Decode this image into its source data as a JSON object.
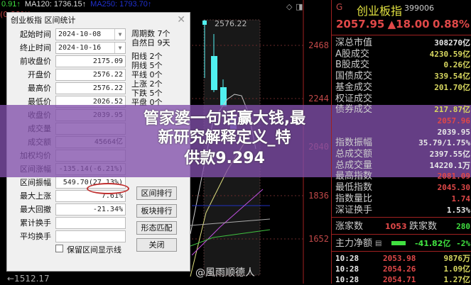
{
  "chart": {
    "ma_prev": "0.91↑",
    "ma120": "MA120: 1736.15↑",
    "ma250": "MA250: 1793.70↑",
    "pct": "(0.88%)",
    "high_marker": "2576.22",
    "low_marker": "←1512.17",
    "axis": [
      "2468",
      "2244",
      "2040",
      "1836",
      "1652"
    ]
  },
  "dialog": {
    "title": "创业板指 区间统计",
    "close": "✕",
    "rows": [
      {
        "label": "起始时间",
        "value": "2024-10-08"
      },
      {
        "label": "终止时间",
        "value": "2024-10-16"
      },
      {
        "label": "前收盘价",
        "value": "2175.09"
      },
      {
        "label": "开盘价",
        "value": "2576.22"
      },
      {
        "label": "最高价",
        "value": "2576.22"
      },
      {
        "label": "最低价",
        "value": "2026.52"
      },
      {
        "label": "收盘价",
        "value": "2039.95"
      },
      {
        "label": "成交量",
        "value": ""
      },
      {
        "label": "成交额",
        "value": "45664亿"
      },
      {
        "label": "加权均价",
        "value": ""
      },
      {
        "label": "区间涨幅",
        "value": "-135.14(-6.21%)"
      },
      {
        "label": "区间振幅",
        "value": "549.70(27.13%)"
      },
      {
        "label": "最大上涨",
        "value": "7.61%"
      },
      {
        "label": "最大回撤",
        "value": "-21.34%"
      },
      {
        "label": "累计换手",
        "value": ""
      },
      {
        "label": "平均换手",
        "value": ""
      }
    ],
    "stats": [
      "周期数 7个",
      "自然日 9天",
      "阳线 2个",
      "阴线 5个",
      "平线 0个",
      "上涨 2个",
      "下跌 5个",
      "平盘 0个"
    ],
    "checkbox_label": "保留区间显示线",
    "checkbox_checked": false,
    "buttons": [
      "区间排行",
      "板块排行",
      "形态匹配",
      "关闭"
    ]
  },
  "banner": {
    "line1": "管家婆一句话赢大钱,最新研究解释定义_特",
    "line2": "供款9.294"
  },
  "watermark": "@風雨顺德人",
  "panel": {
    "market_flag": "G",
    "name": "创业板指",
    "code": "399006",
    "price": "2057.95",
    "change": "▲18.00",
    "change_pct": "0.88%",
    "colors": {
      "up": "#e04848",
      "down": "#40e040",
      "yellow": "#e0e060",
      "white": "#e8e8e8"
    },
    "stats": [
      {
        "label": "深总市值",
        "value": "308270亿",
        "color": "#e8e8e8"
      },
      {
        "label": "A股成交",
        "value": "4230.59亿",
        "color": "#d8d860"
      },
      {
        "label": "B股成交",
        "value": "0.26亿",
        "color": "#d8d860"
      },
      {
        "label": "国债成交",
        "value": "339.54亿",
        "color": "#d8d860"
      },
      {
        "label": "基金成交",
        "value": "201.70亿",
        "color": "#d8d860"
      },
      {
        "label": "权证成交",
        "value": "",
        "color": "#d8d860"
      },
      {
        "label": "债券成交",
        "value": "217.87亿",
        "color": "#d8d860"
      },
      {
        "label": "",
        "value": "2057.96",
        "color": "#e04848"
      },
      {
        "label": "",
        "value": "2039.95",
        "color": "#e8e8e8"
      },
      {
        "label": "指数振幅",
        "value": "35.79/1.75%",
        "color": "#e8e8e8"
      },
      {
        "label": "总成交额",
        "value": "2397.55亿",
        "color": "#e8e8e8"
      },
      {
        "label": "总成交量",
        "value": "14220.1万",
        "color": "#e8e8e8"
      },
      {
        "label": "最高指数",
        "value": "2081.09",
        "color": "#e04848"
      },
      {
        "label": "最低指数",
        "value": "2045.30",
        "color": "#e04848"
      },
      {
        "label": "指数量比",
        "value": "1.74",
        "color": "#e04848"
      },
      {
        "label": "深证换手",
        "value": "1.53%",
        "color": "#e8e8e8"
      }
    ],
    "breadth": {
      "up_label": "涨家数",
      "up": "1053",
      "down_label": "跌家数",
      "down": "280"
    },
    "flow": {
      "label": "主力净额",
      "value": "-41.82亿",
      "pct": "-2%"
    },
    "ticks": [
      {
        "time": "10:28",
        "price": "2053.98",
        "vol": "9876万"
      },
      {
        "time": "10:28",
        "price": "2054.26",
        "vol": "1.09亿"
      },
      {
        "time": "10:28",
        "price": "2054.71",
        "vol": "1.27亿"
      }
    ]
  }
}
